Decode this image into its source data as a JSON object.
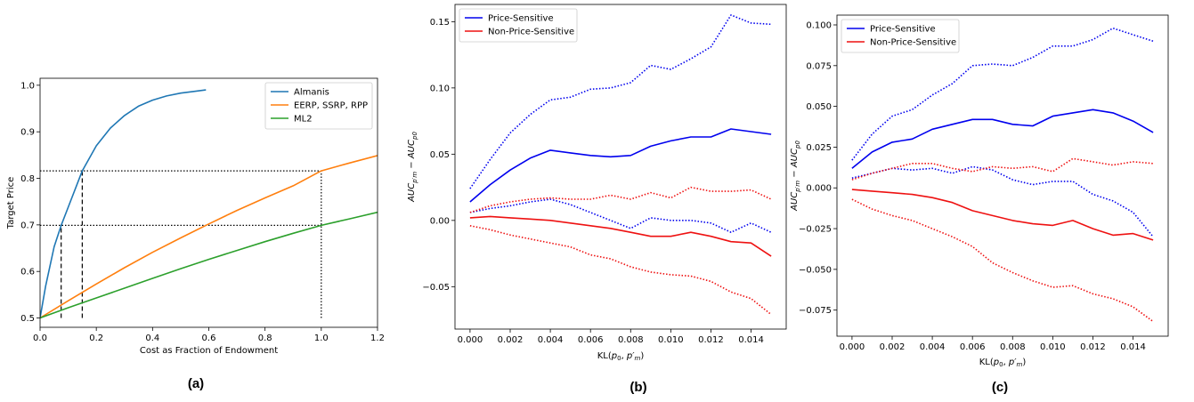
{
  "chart_data": [
    {
      "type": "line",
      "caption": "(a)",
      "xlabel": "Cost as Fraction of Endowment",
      "ylabel": "Target Price",
      "xlim": [
        0.0,
        1.2
      ],
      "ylim": [
        0.48,
        1.015
      ],
      "xticks": [
        "0.0",
        "0.2",
        "0.4",
        "0.6",
        "0.8",
        "1.0",
        "1.2"
      ],
      "yticks": [
        "0.5",
        "0.6",
        "0.7",
        "0.8",
        "0.9",
        "1.0"
      ],
      "legend_position": "top-right",
      "series": [
        {
          "name": "Almanis",
          "color": "#1f77b4",
          "style": "solid",
          "x": [
            0,
            0.02,
            0.05,
            0.075,
            0.1,
            0.15,
            0.2,
            0.25,
            0.3,
            0.35,
            0.4,
            0.45,
            0.5,
            0.55,
            0.59
          ],
          "y": [
            0.5,
            0.569,
            0.653,
            0.699,
            0.738,
            0.816,
            0.87,
            0.908,
            0.935,
            0.955,
            0.968,
            0.977,
            0.983,
            0.987,
            0.99
          ]
        },
        {
          "name": "EERP, SSRP, RPP",
          "color": "#ff7f0e",
          "style": "solid",
          "x": [
            0,
            0.1,
            0.2,
            0.3,
            0.4,
            0.5,
            0.6,
            0.7,
            0.8,
            0.9,
            1.0,
            1.1,
            1.2
          ],
          "y": [
            0.5,
            0.537,
            0.573,
            0.608,
            0.641,
            0.672,
            0.702,
            0.731,
            0.758,
            0.784,
            0.816,
            0.833,
            0.849
          ]
        },
        {
          "name": "ML2",
          "color": "#2ca02c",
          "style": "solid",
          "x": [
            0,
            0.1,
            0.2,
            0.3,
            0.4,
            0.5,
            0.6,
            0.7,
            0.8,
            0.9,
            1.0,
            1.1,
            1.2
          ],
          "y": [
            0.5,
            0.522,
            0.543,
            0.564,
            0.585,
            0.606,
            0.626,
            0.645,
            0.664,
            0.682,
            0.699,
            0.713,
            0.727
          ]
        }
      ],
      "reference_lines": [
        {
          "style": "dotted",
          "x": [
            0,
            1.0
          ],
          "y": [
            0.816,
            0.816
          ]
        },
        {
          "style": "dotted",
          "x": [
            0,
            1.0
          ],
          "y": [
            0.699,
            0.699
          ]
        },
        {
          "style": "dotted",
          "x": [
            1.0,
            1.0
          ],
          "y": [
            0.5,
            0.816
          ]
        },
        {
          "style": "dashed",
          "x": [
            0.075,
            0.075
          ],
          "y": [
            0.5,
            0.699
          ]
        },
        {
          "style": "dashed",
          "x": [
            0.15,
            0.15
          ],
          "y": [
            0.5,
            0.816
          ]
        }
      ]
    },
    {
      "type": "line",
      "caption": "(b)",
      "xlabel": "KL(p₀, p′ₘ)",
      "ylabel": "AUC_{p′_m} − AUC_{p₀}",
      "xlim": [
        -0.00075,
        0.01575
      ],
      "ylim": [
        -0.082,
        0.163
      ],
      "xticks": [
        "0.000",
        "0.002",
        "0.004",
        "0.006",
        "0.008",
        "0.010",
        "0.012",
        "0.014"
      ],
      "yticks": [
        "−0.05",
        "0.00",
        "0.05",
        "0.10",
        "0.15"
      ],
      "yticks_values": [
        -0.05,
        0,
        0.05,
        0.1,
        0.15
      ],
      "xticks_values": [
        0,
        0.002,
        0.004,
        0.006,
        0.008,
        0.01,
        0.012,
        0.014
      ],
      "legend_position": "top-left",
      "x": [
        0,
        0.001,
        0.002,
        0.003,
        0.004,
        0.005,
        0.006,
        0.007,
        0.008,
        0.009,
        0.01,
        0.011,
        0.012,
        0.013,
        0.014,
        0.015
      ],
      "series": [
        {
          "name": "Price-Sensitive",
          "color": "#0000ee",
          "style": "solid",
          "values": [
            0.014,
            0.027,
            0.038,
            0.047,
            0.053,
            0.051,
            0.049,
            0.048,
            0.049,
            0.056,
            0.06,
            0.063,
            0.063,
            0.069,
            0.067,
            0.065
          ]
        },
        {
          "name": "Non-Price-Sensitive",
          "color": "#ee1111",
          "style": "solid",
          "values": [
            0.002,
            0.003,
            0.002,
            0.001,
            0.0,
            -0.002,
            -0.004,
            -0.006,
            -0.009,
            -0.012,
            -0.012,
            -0.009,
            -0.012,
            -0.016,
            -0.017,
            -0.027
          ]
        },
        {
          "color": "#0000ee",
          "style": "dotted",
          "values": [
            0.024,
            0.046,
            0.066,
            0.08,
            0.091,
            0.093,
            0.099,
            0.1,
            0.104,
            0.117,
            0.114,
            0.122,
            0.131,
            0.155,
            0.149,
            0.148
          ]
        },
        {
          "color": "#0000ee",
          "style": "dotted",
          "values": [
            0.006,
            0.009,
            0.011,
            0.014,
            0.016,
            0.012,
            0.006,
            0.0,
            -0.006,
            0.002,
            0.0,
            0.0,
            -0.002,
            -0.009,
            -0.002,
            -0.009
          ]
        },
        {
          "color": "#ee1111",
          "style": "dotted",
          "values": [
            0.006,
            0.011,
            0.014,
            0.016,
            0.017,
            0.016,
            0.016,
            0.019,
            0.016,
            0.021,
            0.017,
            0.025,
            0.022,
            0.022,
            0.023,
            0.016
          ]
        },
        {
          "color": "#ee1111",
          "style": "dotted",
          "values": [
            -0.004,
            -0.007,
            -0.011,
            -0.014,
            -0.017,
            -0.02,
            -0.026,
            -0.029,
            -0.035,
            -0.039,
            -0.041,
            -0.042,
            -0.046,
            -0.054,
            -0.059,
            -0.071
          ]
        }
      ]
    },
    {
      "type": "line",
      "caption": "(c)",
      "xlabel": "KL(p₀, p′ₘ)",
      "ylabel": "AUC_{p′_m} − AUC_{p₀}",
      "xlim": [
        -0.00075,
        0.01575
      ],
      "ylim": [
        -0.091,
        0.106
      ],
      "xticks": [
        "0.000",
        "0.002",
        "0.004",
        "0.006",
        "0.008",
        "0.010",
        "0.012",
        "0.014"
      ],
      "yticks": [
        "−0.075",
        "−0.050",
        "−0.025",
        "0.000",
        "0.025",
        "0.050",
        "0.075",
        "0.100"
      ],
      "yticks_values": [
        -0.075,
        -0.05,
        -0.025,
        0,
        0.025,
        0.05,
        0.075,
        0.1
      ],
      "xticks_values": [
        0,
        0.002,
        0.004,
        0.006,
        0.008,
        0.01,
        0.012,
        0.014
      ],
      "legend_position": "top-left",
      "x": [
        0,
        0.001,
        0.002,
        0.003,
        0.004,
        0.005,
        0.006,
        0.007,
        0.008,
        0.009,
        0.01,
        0.011,
        0.012,
        0.013,
        0.014,
        0.015
      ],
      "series": [
        {
          "name": "Price-Sensitive",
          "color": "#0000ee",
          "style": "solid",
          "values": [
            0.012,
            0.022,
            0.028,
            0.03,
            0.036,
            0.039,
            0.042,
            0.042,
            0.039,
            0.038,
            0.044,
            0.046,
            0.048,
            0.046,
            0.041,
            0.034
          ]
        },
        {
          "name": "Non-Price-Sensitive",
          "color": "#ee1111",
          "style": "solid",
          "values": [
            -0.001,
            -0.002,
            -0.003,
            -0.004,
            -0.006,
            -0.009,
            -0.014,
            -0.017,
            -0.02,
            -0.022,
            -0.023,
            -0.02,
            -0.025,
            -0.029,
            -0.028,
            -0.032
          ]
        },
        {
          "color": "#0000ee",
          "style": "dotted",
          "values": [
            0.017,
            0.033,
            0.044,
            0.048,
            0.057,
            0.064,
            0.075,
            0.076,
            0.075,
            0.08,
            0.087,
            0.087,
            0.091,
            0.098,
            0.094,
            0.09
          ]
        },
        {
          "color": "#0000ee",
          "style": "dotted",
          "values": [
            0.006,
            0.009,
            0.012,
            0.011,
            0.012,
            0.009,
            0.013,
            0.011,
            0.005,
            0.002,
            0.004,
            0.004,
            -0.004,
            -0.008,
            -0.015,
            -0.03
          ]
        },
        {
          "color": "#ee1111",
          "style": "dotted",
          "values": [
            0.005,
            0.009,
            0.012,
            0.015,
            0.015,
            0.012,
            0.01,
            0.013,
            0.012,
            0.013,
            0.01,
            0.018,
            0.016,
            0.014,
            0.016,
            0.015
          ]
        },
        {
          "color": "#ee1111",
          "style": "dotted",
          "values": [
            -0.007,
            -0.013,
            -0.017,
            -0.02,
            -0.025,
            -0.03,
            -0.036,
            -0.046,
            -0.052,
            -0.057,
            -0.061,
            -0.06,
            -0.065,
            -0.068,
            -0.073,
            -0.082
          ]
        }
      ]
    }
  ]
}
